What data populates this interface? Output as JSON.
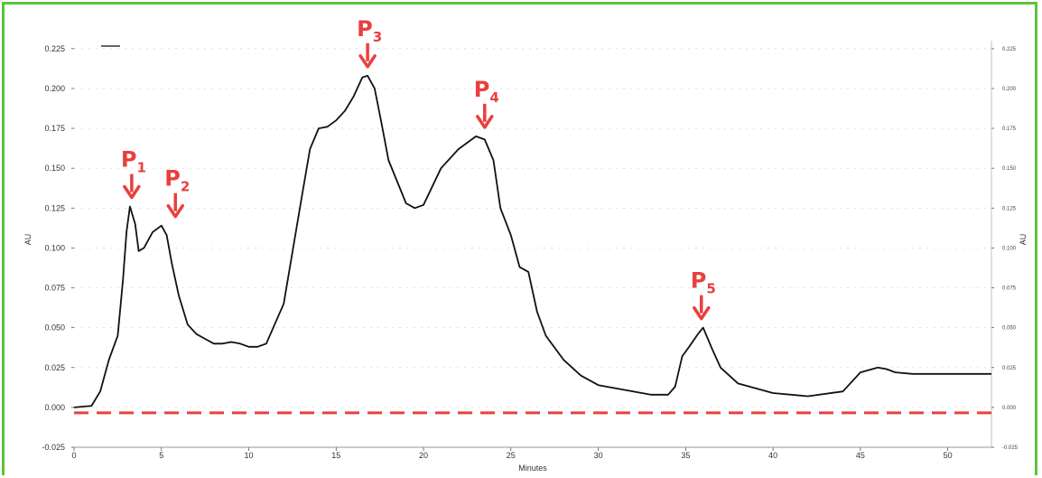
{
  "chart_data": {
    "type": "line",
    "xlabel": "Minutes",
    "ylabel": "AU",
    "y2label": "AU",
    "xlim": [
      0,
      52.5
    ],
    "ylim": [
      -0.025,
      0.23
    ],
    "grid": true,
    "x_ticks": [
      "0",
      "5",
      "10",
      "15",
      "20",
      "25",
      "30",
      "35",
      "40",
      "45",
      "50"
    ],
    "y_ticks": [
      "0.225",
      "0.200",
      "0.175",
      "0.150",
      "0.125",
      "0.100",
      "0.075",
      "0.050",
      "0.025",
      "0.000",
      "-0.025"
    ],
    "y2_ticks": [
      "0.225",
      "0.200",
      "0.175",
      "0.150",
      "0.125",
      "0.100",
      "0.075",
      "0.050",
      "0.025",
      "0.000",
      "-0.025"
    ],
    "baseline": {
      "y": 0,
      "color": "#e8403e",
      "style": "dashed"
    },
    "series": [
      {
        "color": "#111111",
        "x": [
          0,
          1.0,
          1.5,
          2.0,
          2.5,
          2.8,
          3.0,
          3.2,
          3.5,
          3.7,
          4.0,
          4.5,
          5.0,
          5.3,
          5.6,
          6.0,
          6.5,
          7.0,
          7.5,
          8.0,
          8.5,
          9.0,
          9.5,
          10.0,
          10.5,
          11.0,
          12.0,
          13.0,
          13.5,
          14.0,
          14.5,
          15.0,
          15.5,
          16.0,
          16.5,
          16.8,
          17.2,
          17.6,
          18.0,
          19.0,
          19.5,
          20.0,
          21.0,
          22.0,
          23.0,
          23.5,
          24.0,
          24.4,
          25.0,
          25.5,
          26.0,
          26.5,
          27.0,
          28.0,
          29.0,
          30.0,
          31.0,
          32.0,
          33.0,
          34.0,
          34.4,
          34.8,
          35.2,
          35.7,
          36.0,
          36.5,
          37.0,
          38.0,
          40.0,
          42.0,
          44.0,
          45.0,
          46.0,
          46.5,
          47.0,
          48.0,
          50.0,
          52.5
        ],
        "values": [
          0.0,
          0.001,
          0.01,
          0.03,
          0.045,
          0.08,
          0.11,
          0.126,
          0.115,
          0.098,
          0.1,
          0.11,
          0.114,
          0.108,
          0.09,
          0.07,
          0.052,
          0.046,
          0.043,
          0.04,
          0.04,
          0.041,
          0.04,
          0.038,
          0.038,
          0.04,
          0.065,
          0.13,
          0.162,
          0.175,
          0.176,
          0.18,
          0.186,
          0.195,
          0.207,
          0.208,
          0.2,
          0.178,
          0.155,
          0.128,
          0.125,
          0.127,
          0.15,
          0.162,
          0.17,
          0.168,
          0.155,
          0.125,
          0.108,
          0.088,
          0.085,
          0.06,
          0.045,
          0.03,
          0.02,
          0.014,
          0.012,
          0.01,
          0.008,
          0.008,
          0.013,
          0.032,
          0.038,
          0.046,
          0.05,
          0.037,
          0.025,
          0.015,
          0.009,
          0.007,
          0.01,
          0.022,
          0.025,
          0.024,
          0.022,
          0.021,
          0.021,
          0.021
        ]
      }
    ],
    "annotations": [
      {
        "label": "P",
        "sub": "1",
        "x": 3.3,
        "y": 0.126
      },
      {
        "label": "P",
        "sub": "2",
        "x": 5.8,
        "y": 0.114
      },
      {
        "label": "P",
        "sub": "3",
        "x": 16.8,
        "y": 0.208
      },
      {
        "label": "P",
        "sub": "4",
        "x": 23.5,
        "y": 0.17
      },
      {
        "label": "P",
        "sub": "5",
        "x": 35.9,
        "y": 0.05
      }
    ]
  }
}
